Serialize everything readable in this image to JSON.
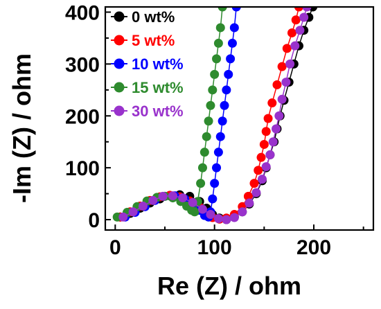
{
  "chart_data": {
    "type": "scatter",
    "xlabel": "Re (Z) / ohm",
    "ylabel": "-Im (Z) / ohm",
    "xlim": [
      -10,
      260
    ],
    "ylim": [
      -20,
      410
    ],
    "xticks": [
      "0",
      "100",
      "200"
    ],
    "yticks": [
      "0",
      "100",
      "200",
      "300",
      "400"
    ],
    "x_tick_values": [
      0,
      100,
      200
    ],
    "y_tick_values": [
      0,
      100,
      200,
      300,
      400
    ],
    "grid": false,
    "legend_position": "top-left",
    "series": [
      {
        "name": "0 wt%",
        "color": "#000000",
        "points": [
          [
            5,
            5
          ],
          [
            15,
            12
          ],
          [
            25,
            22
          ],
          [
            35,
            32
          ],
          [
            45,
            40
          ],
          [
            55,
            46
          ],
          [
            65,
            48
          ],
          [
            75,
            45
          ],
          [
            85,
            35
          ],
          [
            92,
            22
          ],
          [
            98,
            10
          ],
          [
            105,
            3
          ],
          [
            112,
            0
          ],
          [
            120,
            5
          ],
          [
            128,
            15
          ],
          [
            135,
            30
          ],
          [
            142,
            50
          ],
          [
            148,
            75
          ],
          [
            152,
            100
          ],
          [
            156,
            125
          ],
          [
            160,
            150
          ],
          [
            163,
            175
          ],
          [
            166,
            200
          ],
          [
            170,
            230
          ],
          [
            175,
            265
          ],
          [
            180,
            300
          ],
          [
            185,
            335
          ],
          [
            190,
            365
          ],
          [
            195,
            390
          ],
          [
            199,
            410
          ]
        ]
      },
      {
        "name": "5 wt%",
        "color": "#ff0000",
        "points": [
          [
            5,
            5
          ],
          [
            15,
            15
          ],
          [
            25,
            26
          ],
          [
            35,
            37
          ],
          [
            45,
            44
          ],
          [
            55,
            47
          ],
          [
            65,
            44
          ],
          [
            75,
            36
          ],
          [
            85,
            24
          ],
          [
            92,
            12
          ],
          [
            98,
            4
          ],
          [
            105,
            1
          ],
          [
            112,
            3
          ],
          [
            120,
            10
          ],
          [
            128,
            25
          ],
          [
            134,
            45
          ],
          [
            140,
            70
          ],
          [
            144,
            95
          ],
          [
            147,
            120
          ],
          [
            150,
            145
          ],
          [
            152,
            170
          ],
          [
            154,
            195
          ],
          [
            158,
            225
          ],
          [
            163,
            260
          ],
          [
            168,
            295
          ],
          [
            173,
            330
          ],
          [
            178,
            360
          ],
          [
            182,
            385
          ],
          [
            185,
            410
          ]
        ]
      },
      {
        "name": "10 wt%",
        "color": "#0000ff",
        "points": [
          [
            10,
            5
          ],
          [
            20,
            14
          ],
          [
            30,
            25
          ],
          [
            40,
            37
          ],
          [
            50,
            45
          ],
          [
            60,
            46
          ],
          [
            70,
            40
          ],
          [
            78,
            30
          ],
          [
            85,
            18
          ],
          [
            90,
            8
          ],
          [
            94,
            5
          ],
          [
            96,
            15
          ],
          [
            98,
            40
          ],
          [
            100,
            70
          ],
          [
            102,
            100
          ],
          [
            104,
            130
          ],
          [
            106,
            160
          ],
          [
            108,
            190
          ],
          [
            110,
            220
          ],
          [
            112,
            250
          ],
          [
            114,
            280
          ],
          [
            116,
            310
          ],
          [
            118,
            340
          ],
          [
            120,
            370
          ],
          [
            122,
            410
          ]
        ]
      },
      {
        "name": "15 wt%",
        "color": "#2e8b2e",
        "points": [
          [
            2,
            5
          ],
          [
            12,
            14
          ],
          [
            22,
            25
          ],
          [
            32,
            36
          ],
          [
            42,
            43
          ],
          [
            50,
            45
          ],
          [
            58,
            42
          ],
          [
            66,
            35
          ],
          [
            72,
            26
          ],
          [
            77,
            18
          ],
          [
            80,
            15
          ],
          [
            83,
            35
          ],
          [
            86,
            70
          ],
          [
            88,
            100
          ],
          [
            90,
            130
          ],
          [
            92,
            160
          ],
          [
            94,
            190
          ],
          [
            96,
            220
          ],
          [
            98,
            250
          ],
          [
            100,
            280
          ],
          [
            102,
            310
          ],
          [
            104,
            340
          ],
          [
            106,
            370
          ],
          [
            108,
            410
          ]
        ]
      },
      {
        "name": "30 wt%",
        "color": "#9932cc",
        "points": [
          [
            8,
            5
          ],
          [
            18,
            15
          ],
          [
            28,
            26
          ],
          [
            38,
            37
          ],
          [
            48,
            45
          ],
          [
            58,
            46
          ],
          [
            68,
            42
          ],
          [
            78,
            33
          ],
          [
            88,
            20
          ],
          [
            96,
            10
          ],
          [
            104,
            2
          ],
          [
            112,
            0
          ],
          [
            120,
            4
          ],
          [
            128,
            15
          ],
          [
            135,
            32
          ],
          [
            142,
            52
          ],
          [
            148,
            78
          ],
          [
            152,
            102
          ],
          [
            156,
            125
          ],
          [
            159,
            150
          ],
          [
            162,
            175
          ],
          [
            165,
            200
          ],
          [
            168,
            232
          ],
          [
            172,
            265
          ],
          [
            176,
            300
          ],
          [
            181,
            335
          ],
          [
            186,
            365
          ],
          [
            190,
            390
          ],
          [
            193,
            410
          ]
        ]
      }
    ]
  }
}
